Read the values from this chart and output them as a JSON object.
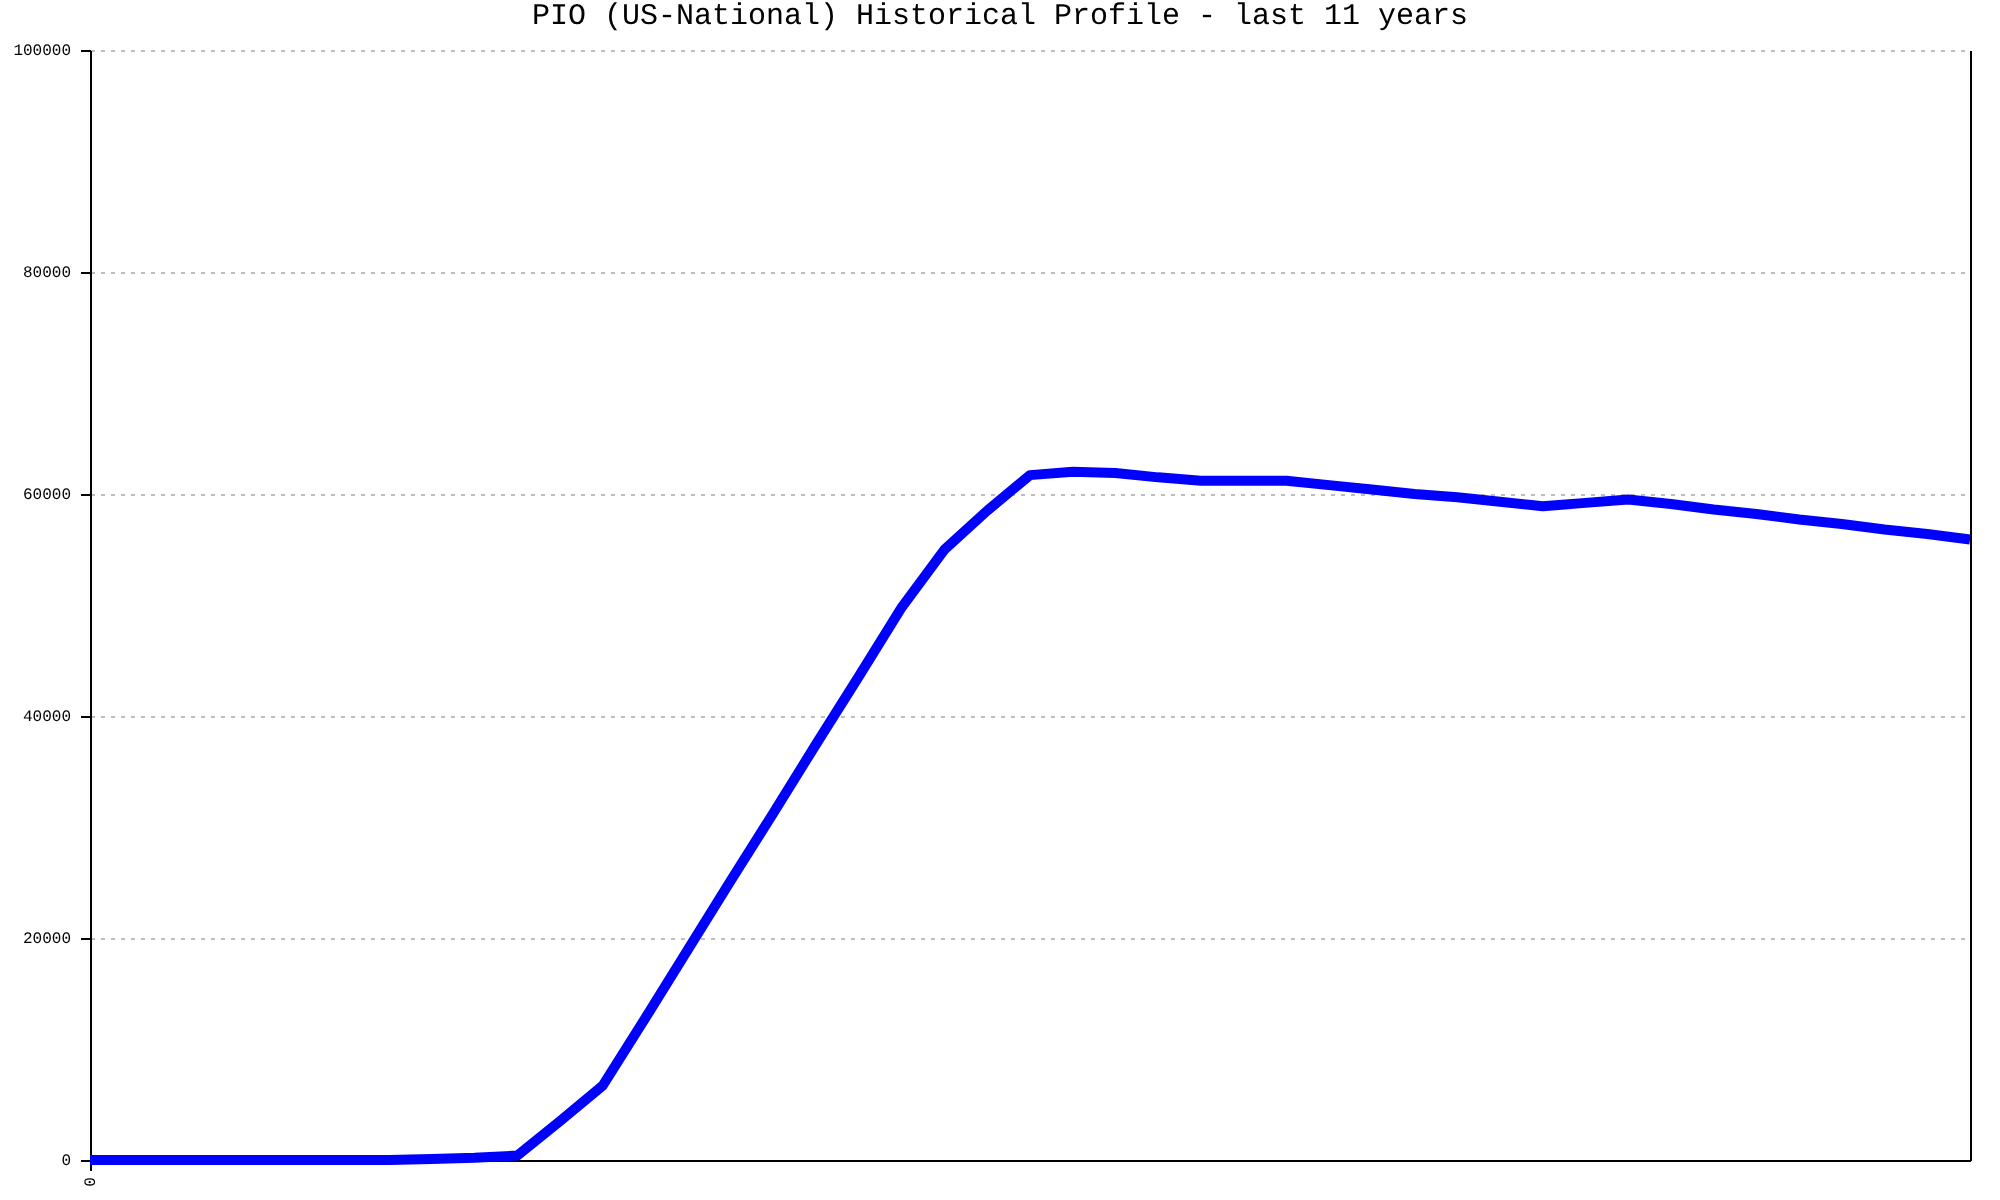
{
  "chart_data": {
    "type": "line",
    "title": "PIO (US-National) Historical Profile - last 11 years",
    "categories": [
      "0",
      null,
      null,
      null,
      null,
      null,
      null,
      null,
      null,
      null,
      null,
      null,
      null,
      null,
      null,
      null,
      null,
      null,
      null,
      null,
      null,
      null,
      null,
      null,
      null,
      null,
      null,
      null,
      null,
      null,
      null,
      null,
      null,
      null,
      null,
      null,
      null,
      null,
      null,
      null,
      null,
      null,
      null,
      null,
      null
    ],
    "series": [
      {
        "color": "#0000ff",
        "values": [
          0,
          0,
          0,
          0,
          0,
          0,
          0,
          0,
          100,
          200,
          400,
          3500,
          6700,
          12800,
          19000,
          25200,
          31300,
          37500,
          43600,
          49800,
          55000,
          58500,
          61700,
          62000,
          61900,
          61500,
          61200,
          61200,
          61200,
          60800,
          60400,
          60000,
          59700,
          59300,
          58900,
          59200,
          59500,
          59100,
          58600,
          58200,
          57700,
          57300,
          56800,
          56400,
          55900
        ]
      }
    ],
    "ylim": [
      0,
      100000
    ],
    "yticks": [
      0,
      20000,
      40000,
      60000,
      80000,
      100000
    ],
    "grid": "y"
  }
}
